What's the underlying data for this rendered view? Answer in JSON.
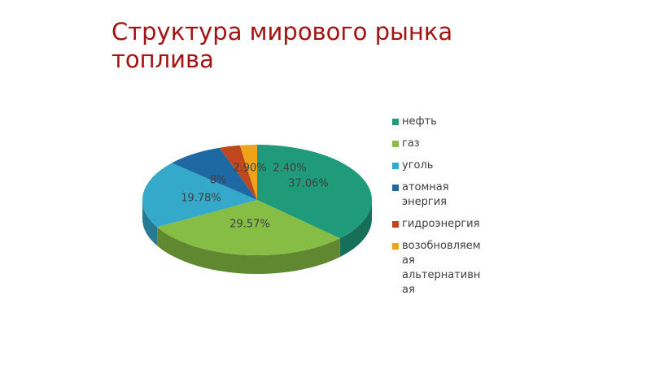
{
  "slide": {
    "title": "Структура мирового рынка топлива"
  },
  "chart_data": {
    "type": "pie",
    "title": "",
    "legend_position": "right",
    "categories": [
      "нефть",
      "газ",
      "уголь",
      "атомная энергия",
      "гидроэнергия",
      "возобновляемая альтернативная"
    ],
    "values": [
      37.06,
      29.57,
      19.78,
      8,
      2.9,
      2.4
    ],
    "data_labels": [
      "37.06%",
      "29.57%",
      "19.78%",
      "8%",
      "2.90%",
      "2.40%"
    ],
    "colors": [
      "#1f9a7a",
      "#86bd44",
      "#35a9c9",
      "#1e69a4",
      "#c0461e",
      "#efa31b"
    ],
    "legend": [
      {
        "color": "#1f9a7a",
        "lines": [
          "нефть"
        ]
      },
      {
        "color": "#86bd44",
        "lines": [
          "газ"
        ]
      },
      {
        "color": "#35a9c9",
        "lines": [
          "уголь"
        ]
      },
      {
        "color": "#1e69a4",
        "lines": [
          "атомная",
          "энергия"
        ]
      },
      {
        "color": "#c0461e",
        "lines": [
          "гидроэнергия"
        ]
      },
      {
        "color": "#efa31b",
        "lines": [
          "возобновляем",
          "ая",
          "альтернативн",
          "ая"
        ]
      }
    ]
  }
}
